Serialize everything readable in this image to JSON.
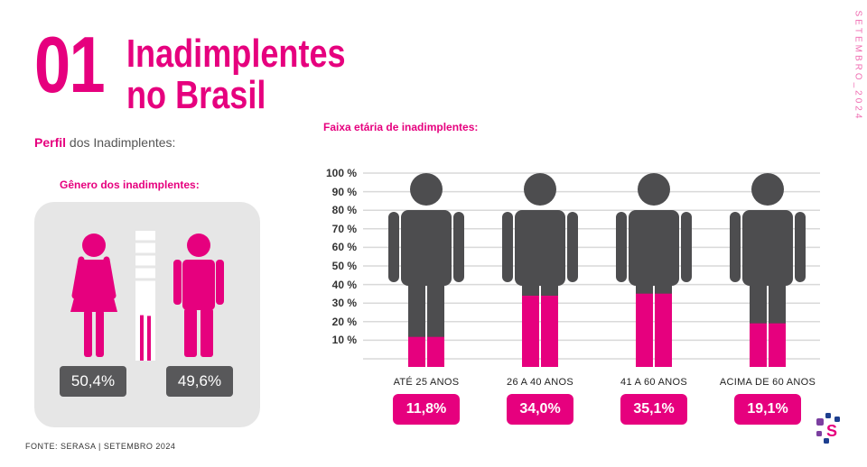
{
  "header": {
    "number": "01",
    "title_line1": "Inadimplentes",
    "title_line2": "no Brasil",
    "side_label": "SETEMBRO_2024"
  },
  "profile": {
    "label_bold": "Perfil",
    "label_rest": " dos Inadimplentes:"
  },
  "gender": {
    "title": "Gênero dos inadimplentes:",
    "female_label": "50,4%",
    "male_label": "49,6%",
    "female_share": 50.4,
    "male_share": 49.6
  },
  "footer": {
    "source": "FONTE: SERASA | SETEMBRO 2024"
  },
  "colors": {
    "accent": "#e6007e",
    "figure": "#4d4d4f",
    "panel": "#e6e6e6",
    "grid": "#d9d9d9"
  },
  "chart_data": {
    "type": "bar",
    "title": "Faixa etária de inadimplentes:",
    "categories": [
      "ATÉ 25 ANOS",
      "26 A 40 ANOS",
      "41 A 60 ANOS",
      "ACIMA DE 60 ANOS"
    ],
    "values": [
      11.8,
      34.0,
      35.1,
      19.1
    ],
    "value_labels": [
      "11,8%",
      "34,0%",
      "35,1%",
      "19,1%"
    ],
    "yticks": [
      "100 %",
      "90 %",
      "80 %",
      "70 %",
      "60 %",
      "50 %",
      "40 %",
      "30 %",
      "20 %",
      "10 %"
    ],
    "ylim": [
      0,
      100
    ],
    "grid": true
  }
}
